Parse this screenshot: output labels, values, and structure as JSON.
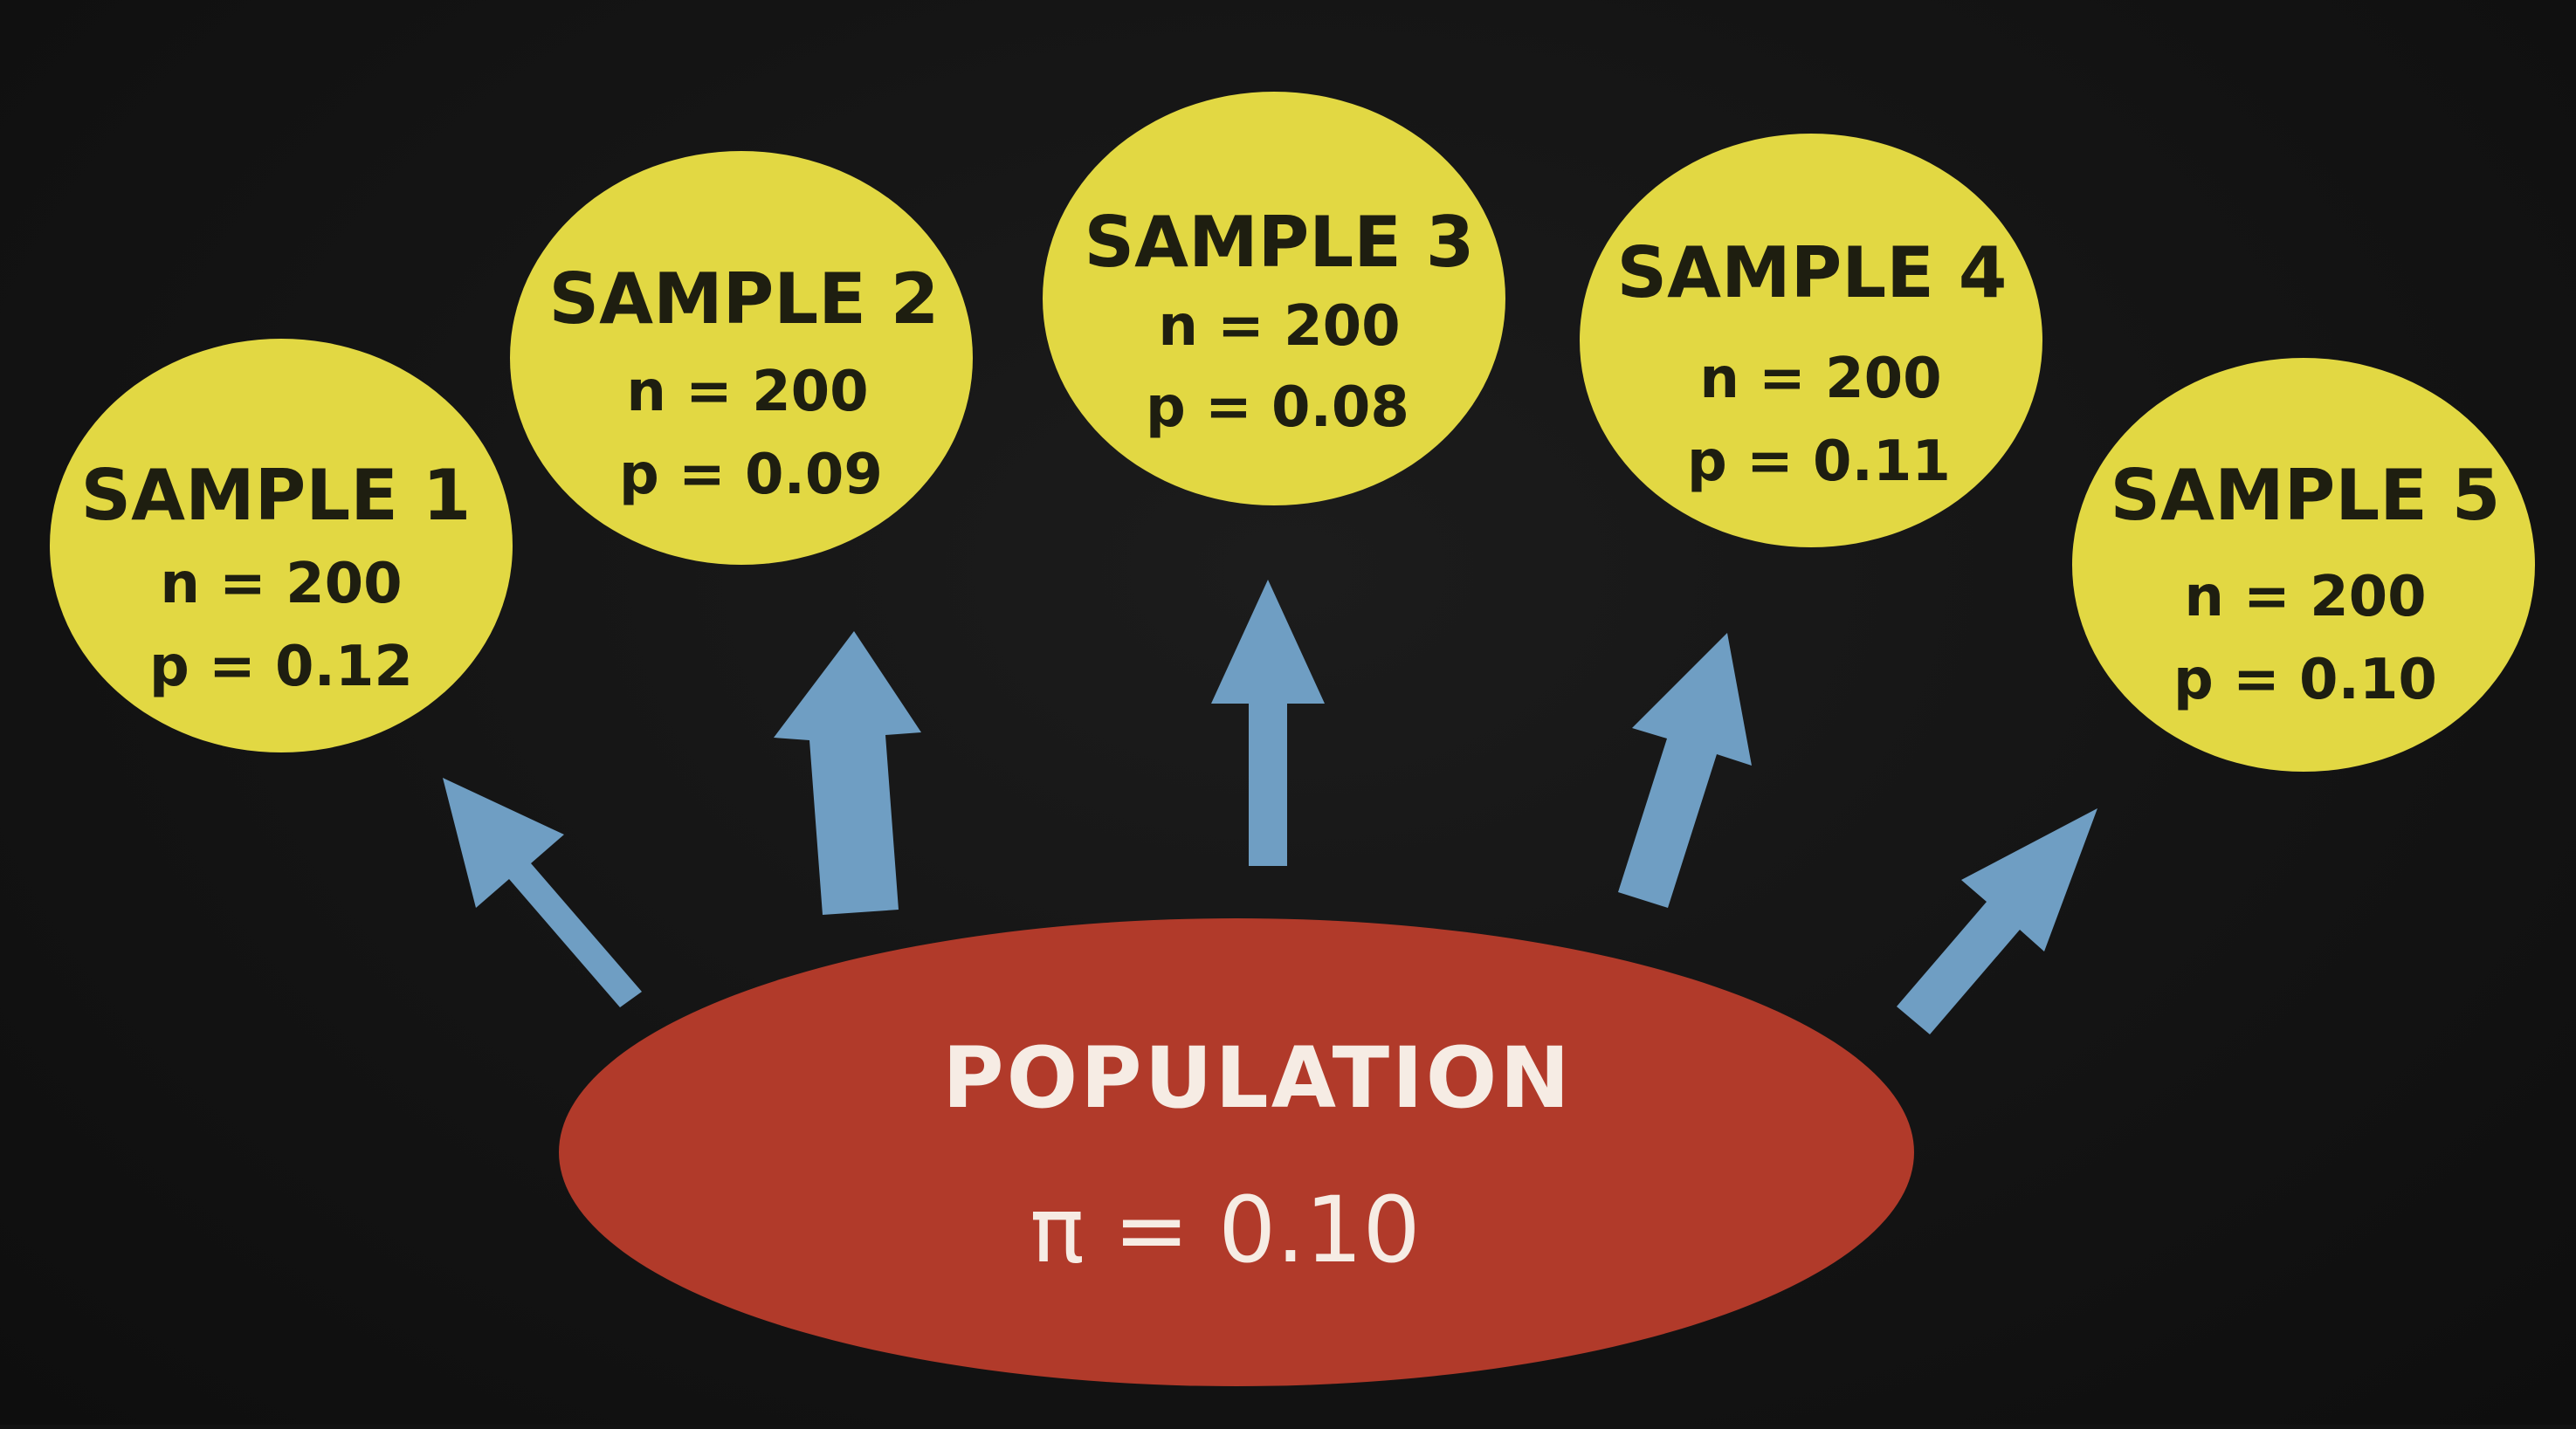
{
  "colors": {
    "background": "#121212",
    "sample_fill": "#e2d843",
    "population_fill": "#b13a2a",
    "arrow_fill": "#6f9ec3",
    "sample_text": "#1e1e10",
    "population_text": "#f6ece4"
  },
  "samples": [
    {
      "title": "SAMPLE 1",
      "n_line": "n = 200",
      "p_line": "p = 0.12"
    },
    {
      "title": "SAMPLE 2",
      "n_line": "n = 200",
      "p_line": "p = 0.09"
    },
    {
      "title": "SAMPLE 3",
      "n_line": "n = 200",
      "p_line": "p = 0.08"
    },
    {
      "title": "SAMPLE 4",
      "n_line": "n = 200",
      "p_line": "p = 0.11"
    },
    {
      "title": "SAMPLE 5",
      "n_line": "n = 200",
      "p_line": "p = 0.10"
    }
  ],
  "population": {
    "title": "POPULATION",
    "parameter": "π = 0.10"
  }
}
